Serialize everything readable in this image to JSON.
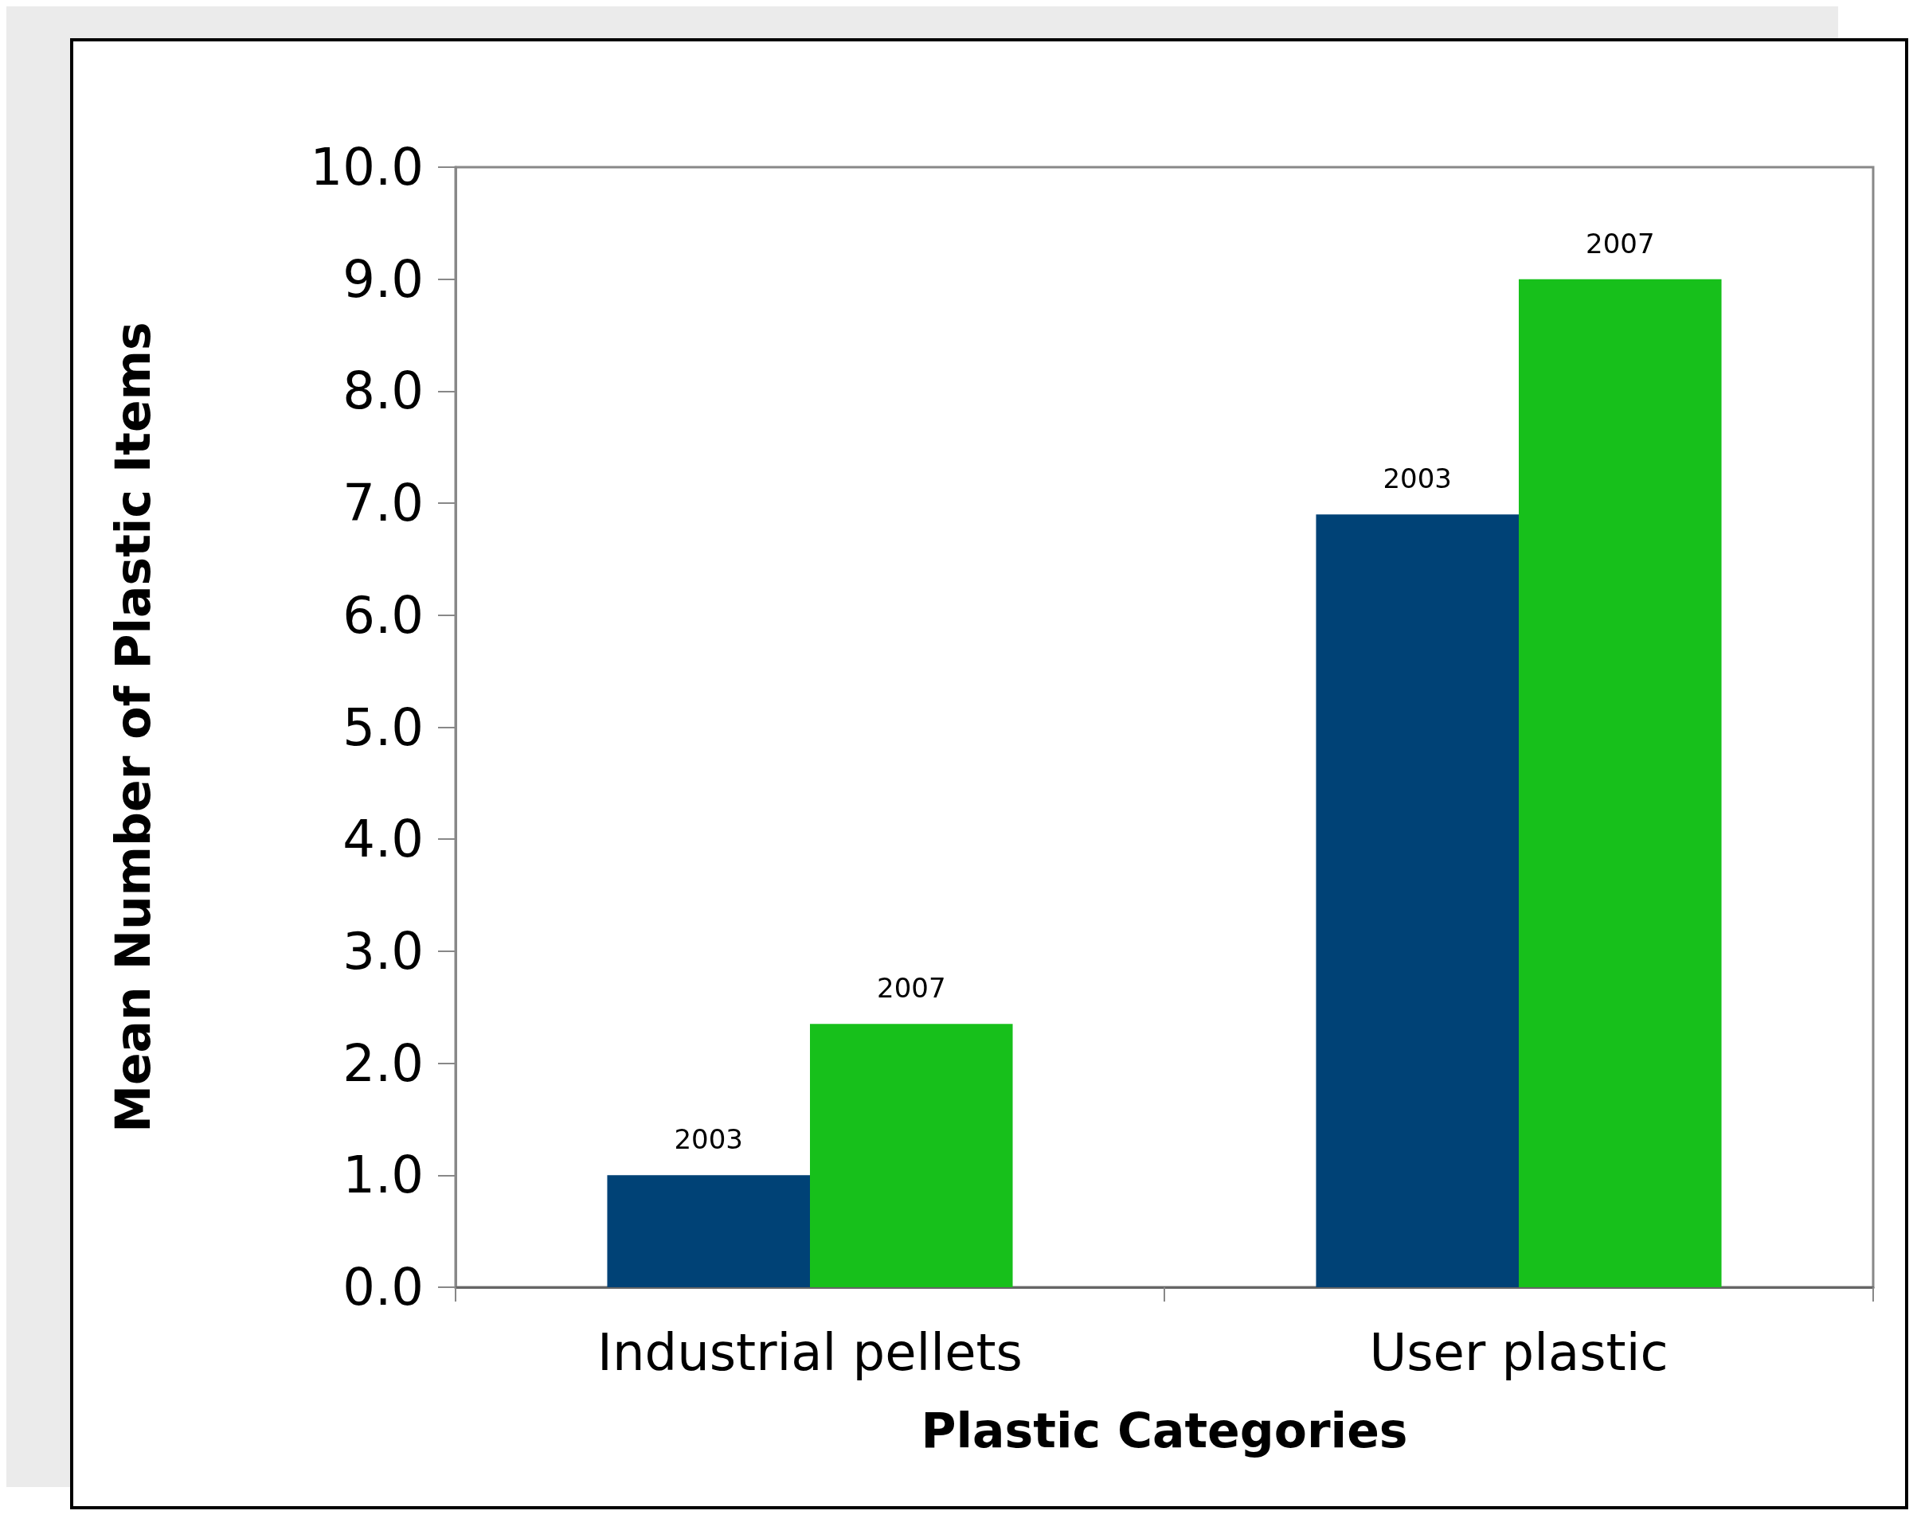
{
  "chart_data": {
    "type": "bar",
    "xlabel": "Plastic Categories",
    "ylabel": "Mean Number of Plastic Items",
    "categories": [
      "Industrial pellets",
      "User plastic"
    ],
    "series": [
      {
        "name": "2003",
        "color": "#004276",
        "values": [
          1.0,
          6.9
        ]
      },
      {
        "name": "2007",
        "color": "#17c01b",
        "values": [
          2.35,
          9.0
        ]
      }
    ],
    "ylim": [
      0,
      10
    ],
    "yticks": [
      {
        "value": 0,
        "label": "0.0"
      },
      {
        "value": 1,
        "label": "1.0"
      },
      {
        "value": 2,
        "label": "2.0"
      },
      {
        "value": 3,
        "label": "3.0"
      },
      {
        "value": 4,
        "label": "4.0"
      },
      {
        "value": 5,
        "label": "5.0"
      },
      {
        "value": 6,
        "label": "6.0"
      },
      {
        "value": 7,
        "label": "7.0"
      },
      {
        "value": 8,
        "label": "8.0"
      },
      {
        "value": 9,
        "label": "9.0"
      },
      {
        "value": 10,
        "label": "10.0"
      }
    ],
    "grid": false,
    "legend": false
  }
}
